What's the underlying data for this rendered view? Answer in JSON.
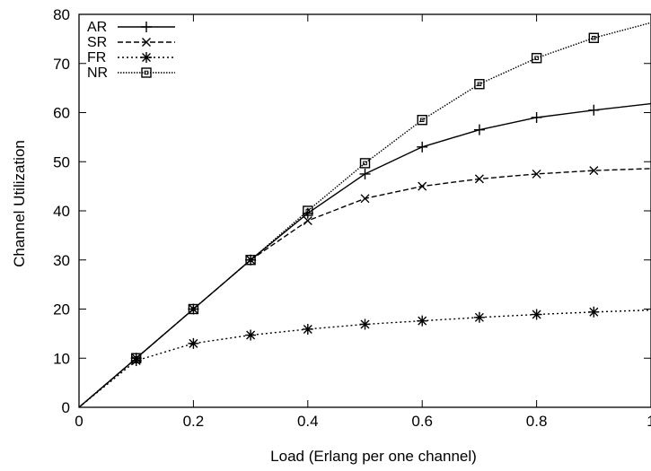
{
  "chart_data": {
    "type": "line",
    "title": "",
    "xlabel": "Load (Erlang per one channel)",
    "ylabel": "Channel Utilization",
    "xlim": [
      0,
      1
    ],
    "ylim": [
      0,
      80
    ],
    "x_ticks": [
      0,
      0.2,
      0.4,
      0.6,
      0.8,
      1
    ],
    "x_tick_labels": [
      "0",
      "0.2",
      "0.4",
      "0.6",
      "0.8",
      "1"
    ],
    "y_ticks": [
      0,
      10,
      20,
      30,
      40,
      50,
      60,
      70,
      80
    ],
    "y_tick_labels": [
      "0",
      "10",
      "20",
      "30",
      "40",
      "50",
      "60",
      "70",
      "80"
    ],
    "grid": false,
    "legend_position": "top-left",
    "series": [
      {
        "name": "AR",
        "marker": "plus",
        "dash": "solid",
        "x": [
          0,
          0.1,
          0.2,
          0.3,
          0.4,
          0.5,
          0.6,
          0.7,
          0.8,
          0.9,
          1.0
        ],
        "y": [
          0,
          10,
          20,
          30,
          39.5,
          47.5,
          53,
          56.5,
          59,
          60.5,
          61.8
        ]
      },
      {
        "name": "SR",
        "marker": "cross",
        "dash": "dashed",
        "x": [
          0,
          0.1,
          0.2,
          0.3,
          0.4,
          0.5,
          0.6,
          0.7,
          0.8,
          0.9,
          1.0
        ],
        "y": [
          0,
          10,
          20,
          30,
          38,
          42.5,
          45,
          46.5,
          47.5,
          48.2,
          48.6
        ]
      },
      {
        "name": "FR",
        "marker": "star",
        "dash": "dotted",
        "x": [
          0,
          0.1,
          0.2,
          0.3,
          0.4,
          0.5,
          0.6,
          0.7,
          0.8,
          0.9,
          1.0
        ],
        "y": [
          0,
          9.5,
          13,
          14.7,
          15.9,
          16.9,
          17.6,
          18.3,
          18.9,
          19.4,
          19.8
        ]
      },
      {
        "name": "NR",
        "marker": "square",
        "dash": "densedotted",
        "x": [
          0,
          0.1,
          0.2,
          0.3,
          0.4,
          0.5,
          0.6,
          0.7,
          0.8,
          0.9,
          1.0
        ],
        "y": [
          0,
          10,
          20,
          30,
          40,
          49.7,
          58.5,
          65.8,
          71.1,
          75.2,
          78.3
        ]
      }
    ]
  }
}
